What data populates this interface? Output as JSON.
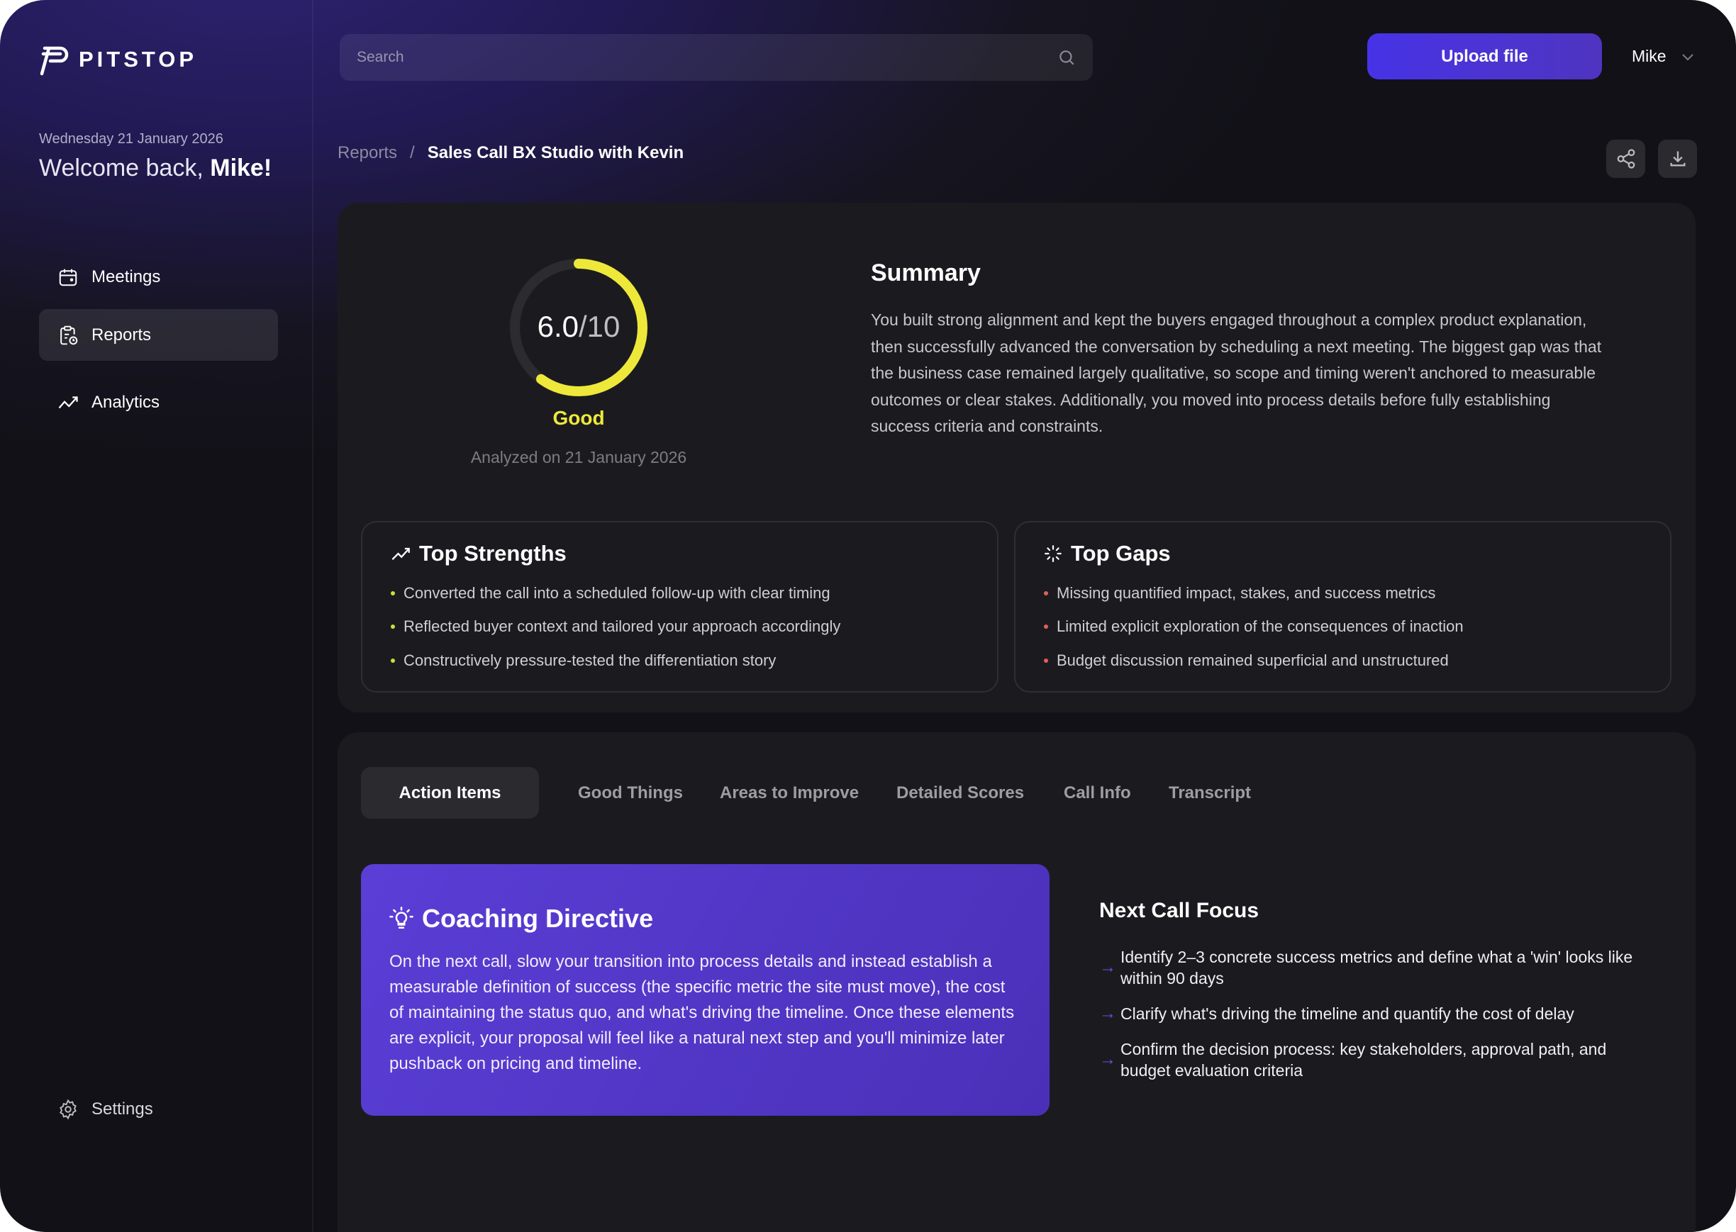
{
  "app": {
    "name": "PITSTOP"
  },
  "sidebar": {
    "date": "Wednesday 21 January 2026",
    "welcome_prefix": "Welcome back, ",
    "welcome_name": "Mike!",
    "items": [
      {
        "label": "Meetings",
        "icon": "calendar-icon"
      },
      {
        "label": "Reports",
        "icon": "clipboard-clock-icon",
        "active": true
      },
      {
        "label": "Analytics",
        "icon": "trend-icon"
      }
    ],
    "settings": "Settings"
  },
  "header": {
    "search_placeholder": "Search",
    "upload_label": "Upload file",
    "user": "Mike"
  },
  "breadcrumb": {
    "parent": "Reports",
    "separator": "/",
    "current": "Sales Call BX Studio with Kevin"
  },
  "score": {
    "value": "6.0",
    "max": "/10",
    "fraction": 0.6,
    "rating": "Good",
    "color": "#eee83a",
    "analyzed": "Analyzed on 21 January 2026"
  },
  "summary": {
    "title": "Summary",
    "body": "You built strong alignment and kept the buyers engaged throughout a complex product explanation, then successfully advanced the conversation by scheduling a next meeting. The biggest gap was that the business case remained largely qualitative, so scope and timing weren't anchored to measurable outcomes or clear stakes. Additionally, you moved into process details before fully establishing success criteria and constraints."
  },
  "strengths": {
    "title": "Top Strengths",
    "items": [
      "Converted the call into a scheduled follow-up with clear timing",
      "Reflected buyer context and tailored your approach accordingly",
      "Constructively pressure-tested the differentiation story"
    ],
    "bullet_color": "#c8e03a"
  },
  "gaps": {
    "title": "Top Gaps",
    "items": [
      "Missing quantified impact, stakes, and success metrics",
      "Limited explicit exploration of the consequences of inaction",
      "Budget discussion remained superficial and unstructured"
    ],
    "bullet_color": "#e0605a"
  },
  "tabs": [
    "Action Items",
    "Good Things",
    "Areas to Improve",
    "Detailed Scores",
    "Call Info",
    "Transcript"
  ],
  "coaching": {
    "title": "Coaching Directive",
    "body": "On the next call, slow your transition into process details and instead establish a measurable definition of success (the specific metric the site must move), the cost of maintaining the status quo, and what's driving the timeline. Once these elements are explicit, your proposal will feel like a natural next step and you'll minimize later pushback on pricing and timeline."
  },
  "next_call": {
    "title": "Next Call Focus",
    "items": [
      "Identify 2–3 concrete success metrics and define what a 'win' looks like within 90 days",
      "Clarify what's driving the timeline and quantify the cost of delay",
      "Confirm the decision process: key stakeholders, approval path, and budget evaluation criteria"
    ]
  }
}
